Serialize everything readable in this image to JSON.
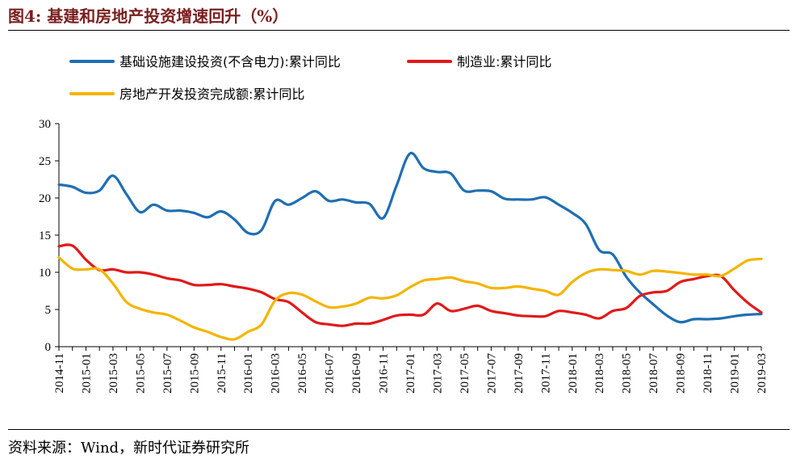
{
  "figure": {
    "title": "图4:  基建和房地产投资增速回升（%）",
    "source": "资料来源：Wind，新时代证券研究所"
  },
  "chart_data": {
    "type": "line",
    "title": "",
    "xlabel": "",
    "ylabel": "",
    "ylim": [
      0,
      30
    ],
    "yticks": [
      0,
      5,
      10,
      15,
      20,
      25,
      30
    ],
    "grid": false,
    "legend_position": "top-left",
    "x": [
      "2014-11",
      "2014-12",
      "2015-01",
      "2015-02",
      "2015-03",
      "2015-04",
      "2015-05",
      "2015-06",
      "2015-07",
      "2015-08",
      "2015-09",
      "2015-10",
      "2015-11",
      "2015-12",
      "2016-01",
      "2016-02",
      "2016-03",
      "2016-04",
      "2016-05",
      "2016-06",
      "2016-07",
      "2016-08",
      "2016-09",
      "2016-10",
      "2016-11",
      "2016-12",
      "2017-01",
      "2017-02",
      "2017-03",
      "2017-04",
      "2017-05",
      "2017-06",
      "2017-07",
      "2017-08",
      "2017-09",
      "2017-10",
      "2017-11",
      "2017-12",
      "2018-01",
      "2018-02",
      "2018-03",
      "2018-04",
      "2018-05",
      "2018-06",
      "2018-07",
      "2018-08",
      "2018-09",
      "2018-10",
      "2018-11",
      "2018-12",
      "2019-01",
      "2019-02",
      "2019-03"
    ],
    "xtick_labels": [
      "2014-11",
      "2015-01",
      "2015-03",
      "2015-05",
      "2015-07",
      "2015-09",
      "2015-11",
      "2016-01",
      "2016-03",
      "2016-05",
      "2016-07",
      "2016-09",
      "2016-11",
      "2017-01",
      "2017-03",
      "2017-05",
      "2017-07",
      "2017-09",
      "2017-11",
      "2018-01",
      "2018-03",
      "2018-05",
      "2018-07",
      "2018-09",
      "2018-11",
      "2019-01",
      "2019-03"
    ],
    "series": [
      {
        "name": "基础设施建设投资(不含电力):累计同比",
        "color": "#1f6fb2",
        "values": [
          21.8,
          21.5,
          20.7,
          21.0,
          23.0,
          20.5,
          18.1,
          19.1,
          18.3,
          18.3,
          18.0,
          17.4,
          18.2,
          17.1,
          15.3,
          15.7,
          19.6,
          19.1,
          20.0,
          20.9,
          19.6,
          19.8,
          19.4,
          19.2,
          17.3,
          21.7,
          26.0,
          24.0,
          23.5,
          23.3,
          21.0,
          21.0,
          20.9,
          19.9,
          19.8,
          19.8,
          20.1,
          19.1,
          18.0,
          16.5,
          13.0,
          12.4,
          9.4,
          7.3,
          5.7,
          4.2,
          3.3,
          3.7,
          3.7,
          3.8,
          4.1,
          4.3,
          4.4
        ]
      },
      {
        "name": "制造业:累计同比",
        "color": "#e01a1a",
        "values": [
          13.5,
          13.6,
          11.7,
          10.3,
          10.4,
          10.0,
          10.0,
          9.7,
          9.2,
          8.9,
          8.3,
          8.3,
          8.4,
          8.1,
          7.8,
          7.3,
          6.4,
          6.0,
          4.6,
          3.3,
          3.0,
          2.8,
          3.1,
          3.1,
          3.6,
          4.2,
          4.3,
          4.3,
          5.8,
          4.8,
          5.1,
          5.5,
          4.8,
          4.5,
          4.2,
          4.1,
          4.1,
          4.8,
          4.6,
          4.3,
          3.8,
          4.8,
          5.2,
          6.8,
          7.3,
          7.5,
          8.7,
          9.1,
          9.5,
          9.5,
          7.6,
          5.9,
          4.6
        ]
      },
      {
        "name": "房地产开发投资完成额:累计同比",
        "color": "#f4b400",
        "values": [
          12.0,
          10.5,
          10.4,
          10.4,
          8.5,
          6.0,
          5.1,
          4.6,
          4.3,
          3.5,
          2.6,
          2.0,
          1.3,
          1.0,
          2.0,
          3.0,
          6.2,
          7.2,
          7.0,
          6.1,
          5.3,
          5.4,
          5.8,
          6.6,
          6.5,
          6.9,
          8.0,
          8.9,
          9.1,
          9.3,
          8.8,
          8.5,
          7.9,
          7.9,
          8.1,
          7.8,
          7.5,
          7.0,
          8.7,
          9.9,
          10.4,
          10.3,
          10.2,
          9.7,
          10.2,
          10.1,
          9.9,
          9.7,
          9.7,
          9.5,
          10.5,
          11.6,
          11.8
        ]
      }
    ]
  }
}
